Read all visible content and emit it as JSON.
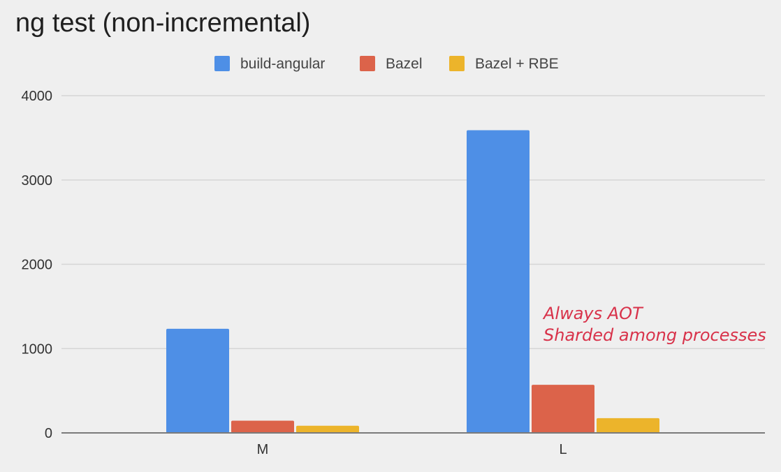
{
  "chart_data": {
    "type": "bar",
    "title": "ng test (non-incremental)",
    "categories": [
      "M",
      "L"
    ],
    "series": [
      {
        "name": "build-angular",
        "color": "#4e8fe6",
        "values": [
          1235,
          3590
        ]
      },
      {
        "name": "Bazel",
        "color": "#dc634a",
        "values": [
          145,
          570
        ]
      },
      {
        "name": "Bazel + RBE",
        "color": "#ecb42b",
        "values": [
          85,
          175
        ]
      }
    ],
    "ylim": [
      0,
      4000
    ],
    "yticks": [
      0,
      1000,
      2000,
      3000,
      4000
    ],
    "xlabel": "",
    "ylabel": "",
    "grid": true,
    "legend_position": "top",
    "annotation": {
      "lines": [
        "Always AOT",
        "Sharded among processes"
      ],
      "color": "#d8324a"
    }
  }
}
